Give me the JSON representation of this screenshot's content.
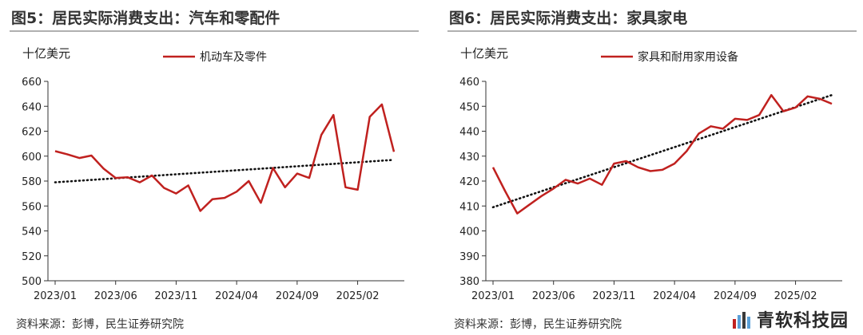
{
  "chart_data": [
    {
      "type": "line",
      "title": "图5：居民实际消费支出：汽车和零配件",
      "ylabel": "十亿美元",
      "ylim": [
        500,
        660
      ],
      "yticks": [
        500,
        520,
        540,
        560,
        580,
        600,
        620,
        640,
        660
      ],
      "xticks": [
        "2023/01",
        "2023/06",
        "2023/11",
        "2024/04",
        "2024/09",
        "2025/02"
      ],
      "legend_position": "top",
      "grid": false,
      "series": [
        {
          "name": "机动车及零件",
          "color": "#c0211f",
          "x": [
            "2023/01",
            "2023/02",
            "2023/03",
            "2023/04",
            "2023/05",
            "2023/06",
            "2023/07",
            "2023/08",
            "2023/09",
            "2023/10",
            "2023/11",
            "2023/12",
            "2024/01",
            "2024/02",
            "2024/03",
            "2024/04",
            "2024/05",
            "2024/06",
            "2024/07",
            "2024/08",
            "2024/09",
            "2024/10",
            "2024/11",
            "2024/12",
            "2025/01",
            "2025/02",
            "2025/03",
            "2025/04",
            "2025/05"
          ],
          "values": [
            604,
            601.5,
            598.5,
            600.5,
            590,
            582.5,
            583,
            579,
            584.5,
            574.5,
            570,
            576.5,
            556,
            565.5,
            566.5,
            571.5,
            580,
            562.5,
            590.5,
            575,
            586,
            582.5,
            617,
            633,
            575,
            573,
            631.5,
            641.5,
            603.5
          ]
        }
      ],
      "trendline": {
        "style": "dotted",
        "start": 579,
        "end": 597
      },
      "source": "资料来源：彭博，民生证券研究院"
    },
    {
      "type": "line",
      "title": "图6：居民实际消费支出：家具家电",
      "ylabel": "十亿美元",
      "ylim": [
        380,
        460
      ],
      "yticks": [
        380,
        390,
        400,
        410,
        420,
        430,
        440,
        450,
        460
      ],
      "xticks": [
        "2023/01",
        "2023/06",
        "2023/11",
        "2024/04",
        "2024/09",
        "2025/02"
      ],
      "legend_position": "top",
      "grid": false,
      "series": [
        {
          "name": "家具和耐用家用设备",
          "color": "#c0211f",
          "x": [
            "2023/01",
            "2023/02",
            "2023/03",
            "2023/04",
            "2023/05",
            "2023/06",
            "2023/07",
            "2023/08",
            "2023/09",
            "2023/10",
            "2023/11",
            "2023/12",
            "2024/01",
            "2024/02",
            "2024/03",
            "2024/04",
            "2024/05",
            "2024/06",
            "2024/07",
            "2024/08",
            "2024/09",
            "2024/10",
            "2024/11",
            "2024/12",
            "2025/01",
            "2025/02",
            "2025/03",
            "2025/04",
            "2025/05"
          ],
          "values": [
            425.5,
            416,
            407,
            410.5,
            414,
            417,
            420.5,
            419,
            421,
            418.5,
            427,
            428,
            425.5,
            424,
            424.5,
            427,
            432,
            439,
            442,
            441,
            445,
            444.5,
            446.5,
            454.5,
            448,
            449.5,
            454,
            453,
            451
          ]
        }
      ],
      "trendline": {
        "style": "dotted",
        "start": 409.5,
        "end": 454.5
      },
      "source": "资料来源：彭博，民生证券研究院"
    }
  ],
  "watermark": {
    "text": "青软科技园"
  }
}
